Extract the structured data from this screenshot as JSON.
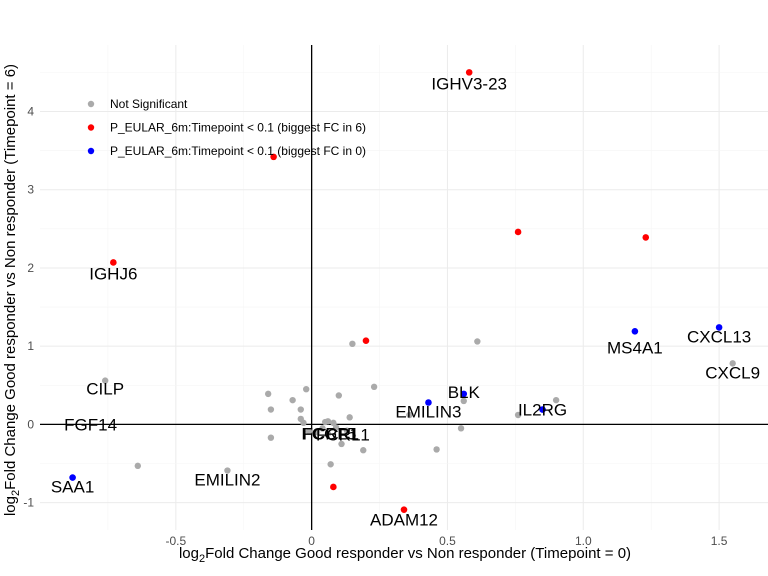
{
  "chart_data": {
    "type": "scatter",
    "xlabel": {
      "prefix": "log",
      "sub": "2",
      "rest": "Fold Change Good responder vs Non responder (Timepoint = 0)"
    },
    "ylabel": {
      "prefix": "log",
      "sub": "2",
      "rest": "Fold Change Good responder vs Non responder (Timepoint = 6)"
    },
    "xlim": [
      -1.0,
      1.68
    ],
    "ylim": [
      -1.35,
      4.85
    ],
    "x_ticks": [
      -0.5,
      0,
      0.5,
      1.0,
      1.5
    ],
    "x_tick_labels": [
      "-0.5",
      "0",
      "0.5",
      "1.0",
      "1.5"
    ],
    "y_ticks": [
      -1,
      0,
      1,
      2,
      3,
      4
    ],
    "y_tick_labels": [
      "-1",
      "0",
      "1",
      "2",
      "3",
      "4"
    ],
    "grid": true,
    "legend_position": "top-left",
    "colors": {
      "ns": "#aaaaaa",
      "red": "#ff0000",
      "blue": "#0000ff"
    },
    "series": [
      {
        "name": "Not Significant",
        "color": "#aaaaaa",
        "points": [
          [
            -0.76,
            0.56
          ],
          [
            -0.64,
            -0.53
          ],
          [
            -0.31,
            -0.59
          ],
          [
            -0.16,
            0.39
          ],
          [
            -0.15,
            0.19
          ],
          [
            -0.15,
            -0.17
          ],
          [
            -0.07,
            0.31
          ],
          [
            -0.04,
            0.19
          ],
          [
            -0.04,
            0.07
          ],
          [
            -0.03,
            0.02
          ],
          [
            -0.02,
            0.45
          ],
          [
            -0.01,
            -0.09
          ],
          [
            0.02,
            -0.1
          ],
          [
            0.04,
            -0.05
          ],
          [
            0.05,
            0.03
          ],
          [
            0.06,
            0.04
          ],
          [
            0.06,
            -0.12
          ],
          [
            0.07,
            -0.51
          ],
          [
            0.08,
            0.02
          ],
          [
            0.09,
            -0.04
          ],
          [
            0.1,
            0.37
          ],
          [
            0.11,
            -0.25
          ],
          [
            0.13,
            -0.08
          ],
          [
            0.14,
            0.09
          ],
          [
            0.15,
            1.03
          ],
          [
            0.19,
            -0.33
          ],
          [
            0.23,
            0.48
          ],
          [
            0.36,
            0.12
          ],
          [
            0.46,
            -0.32
          ],
          [
            0.55,
            -0.05
          ],
          [
            0.56,
            0.3
          ],
          [
            0.61,
            1.06
          ],
          [
            0.76,
            0.12
          ],
          [
            0.9,
            0.31
          ],
          [
            1.55,
            0.78
          ]
        ]
      },
      {
        "name": "P_EULAR_6m:Timepoint < 0.1 (biggest FC in 6)",
        "color": "#ff0000",
        "points": [
          [
            -0.73,
            2.07
          ],
          [
            -0.14,
            3.42
          ],
          [
            0.08,
            -0.8
          ],
          [
            0.2,
            1.07
          ],
          [
            0.34,
            -1.09
          ],
          [
            0.58,
            4.5
          ],
          [
            0.76,
            2.46
          ],
          [
            1.23,
            2.39
          ]
        ]
      },
      {
        "name": "P_EULAR_6m:Timepoint < 0.1 (biggest FC in 0)",
        "color": "#0000ff",
        "points": [
          [
            -0.88,
            -0.68
          ],
          [
            0.43,
            0.28
          ],
          [
            0.56,
            0.39
          ],
          [
            0.85,
            0.19
          ],
          [
            1.19,
            1.19
          ],
          [
            1.5,
            1.24
          ]
        ]
      }
    ],
    "annotations": [
      {
        "text": "IGHV3-23",
        "x": 0.58,
        "y": 4.5
      },
      {
        "text": "IGHJ6",
        "x": -0.73,
        "y": 2.07
      },
      {
        "text": "MS4A1",
        "x": 1.19,
        "y": 1.19
      },
      {
        "text": "CXCL13",
        "x": 1.5,
        "y": 1.24
      },
      {
        "text": "CXCL9",
        "x": 1.55,
        "y": 0.78
      },
      {
        "text": "CILP",
        "x": -0.76,
        "y": 0.56
      },
      {
        "text": "FGF14",
        "x": -0.81,
        "y": 0.0
      },
      {
        "text": "BLK",
        "x": 0.56,
        "y": 0.39
      },
      {
        "text": "EMILIN3",
        "x": 0.43,
        "y": 0.28
      },
      {
        "text": "IL2RG",
        "x": 0.85,
        "y": 0.19
      },
      {
        "text": "FCRL1",
        "x": 0.06,
        "y": -0.04
      },
      {
        "text": "FCRL5",
        "x": 0.04,
        "y": -0.04
      },
      {
        "text": "FCGR1",
        "x": 0.05,
        "y": -0.04
      },
      {
        "text": "SAA1",
        "x": -0.88,
        "y": -0.68
      },
      {
        "text": "EMILIN2",
        "x": -0.31,
        "y": -0.59
      },
      {
        "text": "ADAM12",
        "x": 0.34,
        "y": -1.09
      }
    ]
  }
}
